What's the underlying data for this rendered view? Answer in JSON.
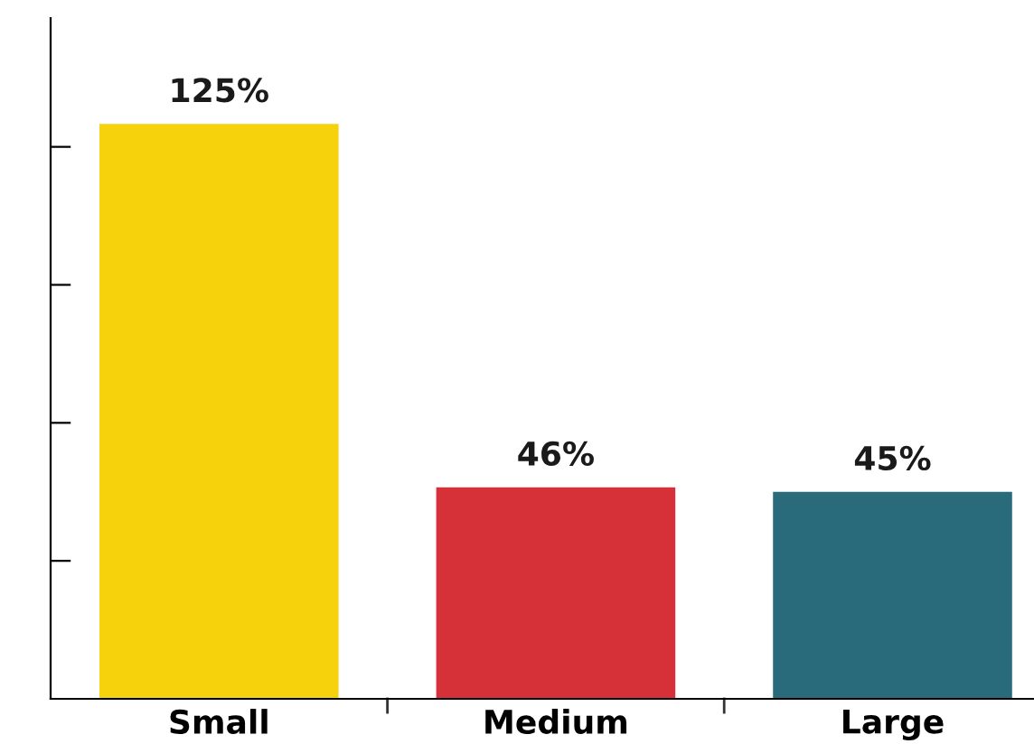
{
  "chart_data": {
    "type": "bar",
    "categories": [
      "Small",
      "Medium",
      "Large"
    ],
    "values": [
      125,
      46,
      45
    ],
    "colors": [
      "#f5d20b",
      "#d63038",
      "#2a6b7b"
    ],
    "value_labels": [
      "125%",
      "46%",
      "45%"
    ],
    "ylim": [
      0,
      148
    ],
    "yticks": [
      {
        "value": 30,
        "label": null
      },
      {
        "value": 60,
        "label": null
      },
      {
        "value": 90,
        "label": null
      },
      {
        "value": 120,
        "label": null
      }
    ],
    "tick_labels": "x",
    "grid": false,
    "legend": false
  }
}
